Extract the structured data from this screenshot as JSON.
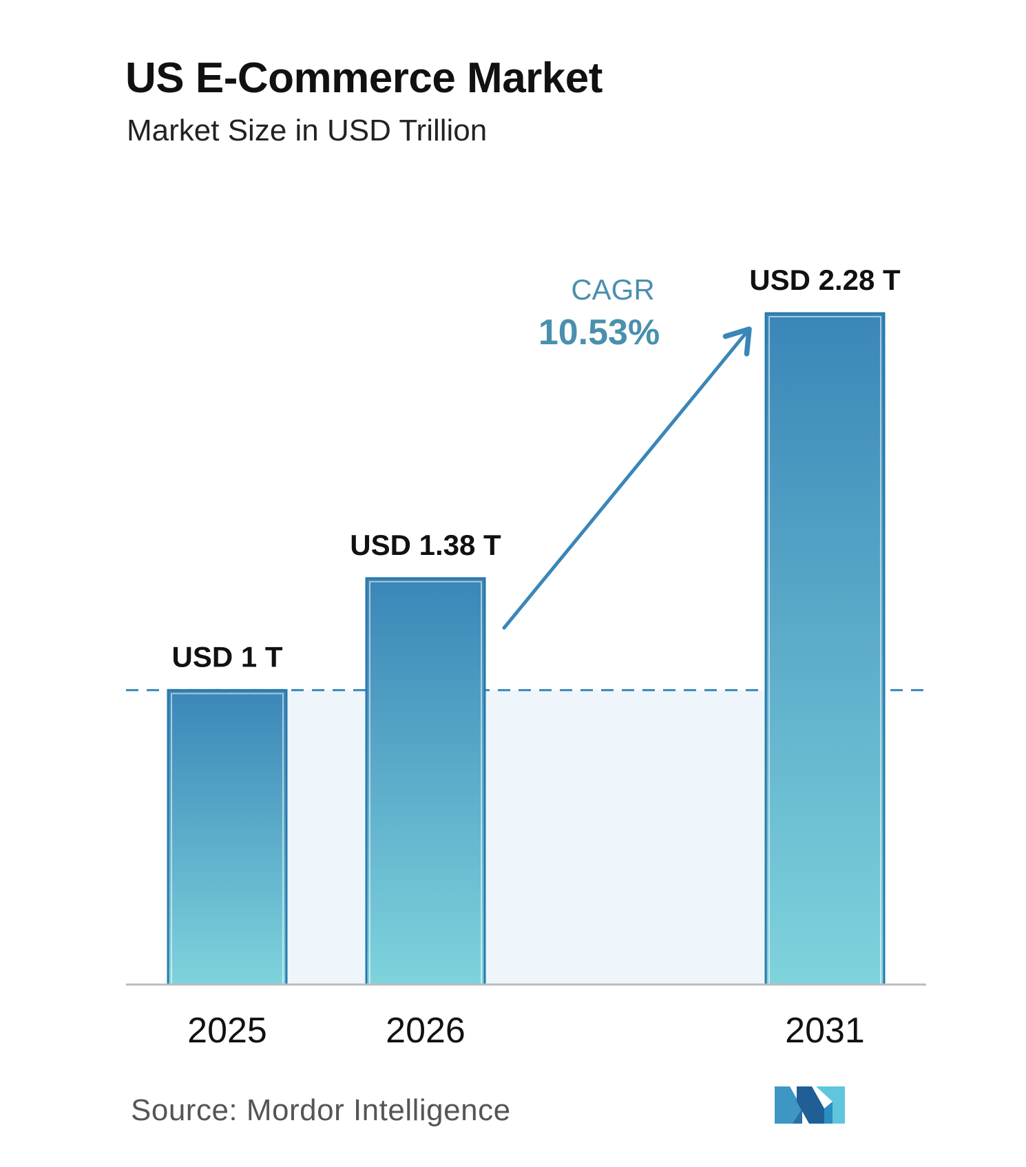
{
  "title": "US E-Commerce Market",
  "subtitle": "Market Size in USD Trillion",
  "source": "Source:  Mordor Intelligence",
  "cagr": {
    "label": "CAGR",
    "value": "10.53%"
  },
  "colors": {
    "bar_top": "#3a86b8",
    "bar_bottom": "#7fd3dc",
    "accent": "#3a86b8",
    "cagr_label": "#4a8fae",
    "dashed_line": "#3a86b8",
    "axis": "#bbbbbb",
    "shade": "#eaf4fb"
  },
  "chart_data": {
    "type": "bar",
    "title": "US E-Commerce Market",
    "subtitle": "Market Size in USD Trillion",
    "categories": [
      "2025",
      "2026",
      "2031"
    ],
    "values": [
      1.0,
      1.38,
      2.28
    ],
    "data_labels": [
      "USD 1 T",
      "USD 1.38 T",
      "USD 2.28 T"
    ],
    "reference_line": 1.0,
    "ylim": [
      0,
      2.28
    ],
    "grid": false,
    "legend": "none"
  }
}
